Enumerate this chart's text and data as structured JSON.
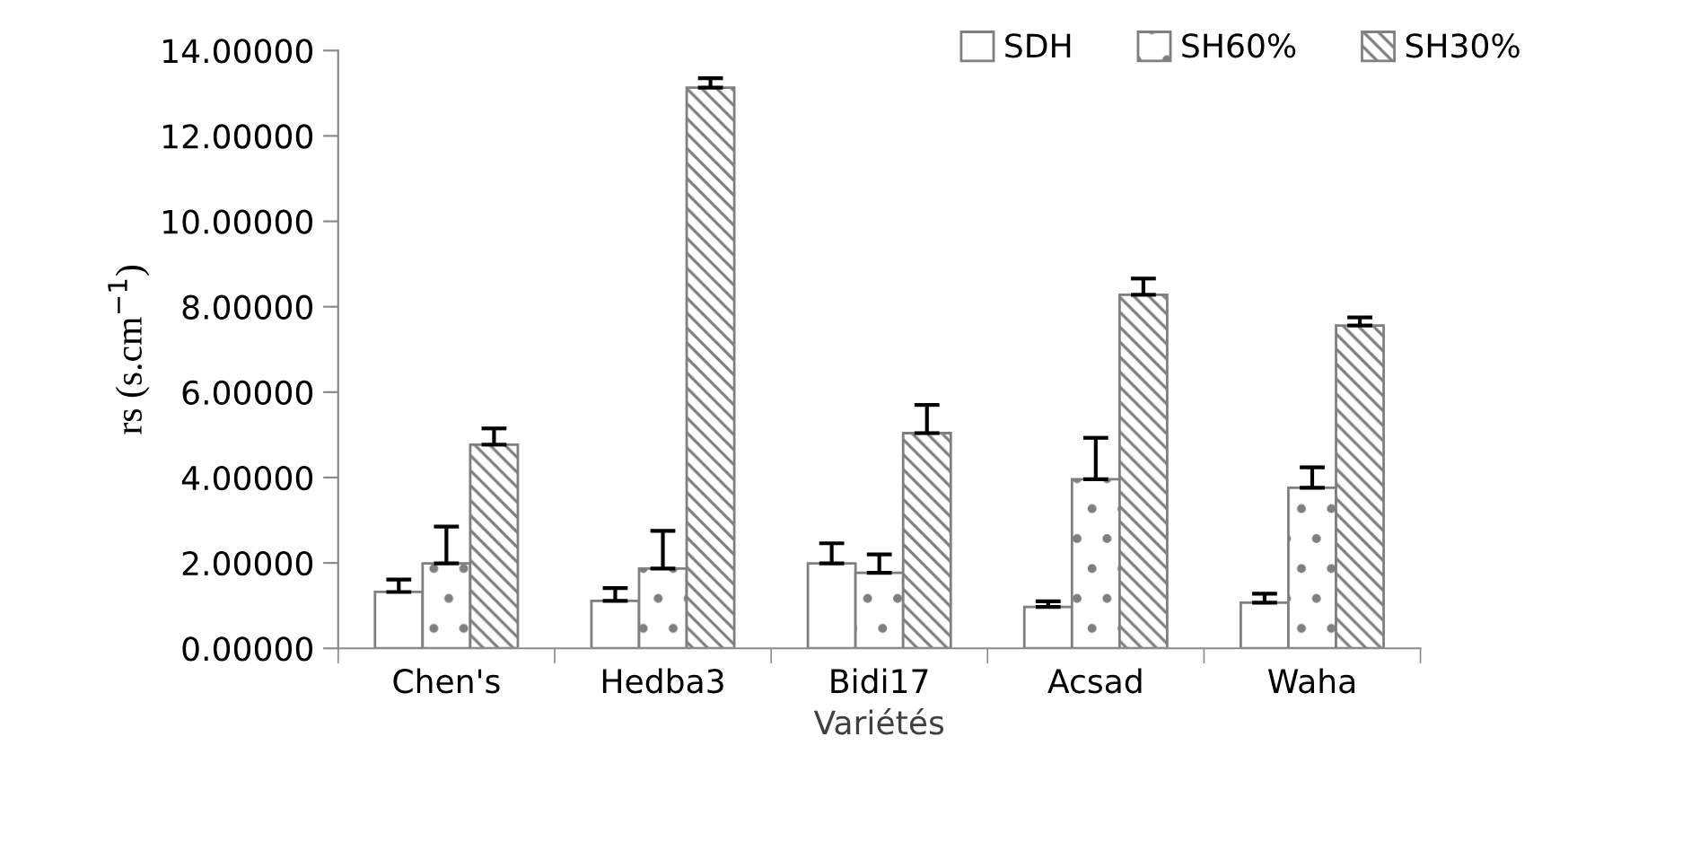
{
  "chart_data": {
    "type": "bar",
    "xlabel": "Variétés",
    "ylabel": "rs (s.cm$^{−1}$)",
    "categories": [
      "Chen's",
      "Hedba3",
      "Bidi17",
      "Acsad",
      "Waha"
    ],
    "series": [
      {
        "name": "SDH",
        "color": "#ffffff",
        "values": [
          1.32,
          1.11,
          1.99,
          0.97,
          1.07
        ],
        "errors": [
          [
            1.32,
            1.61
          ],
          [
            1.11,
            1.41
          ],
          [
            1.99,
            2.46
          ],
          [
            0.97,
            1.1
          ],
          [
            1.07,
            1.28
          ]
        ]
      },
      {
        "name": "SH60%",
        "color": "#7f7f7f",
        "values": [
          1.99,
          1.87,
          1.77,
          3.96,
          3.76
        ],
        "errors": [
          [
            1.99,
            2.85
          ],
          [
            1.87,
            2.75
          ],
          [
            1.77,
            2.2
          ],
          [
            3.96,
            4.93
          ],
          [
            3.76,
            4.24
          ]
        ]
      },
      {
        "name": "SH30%",
        "color": "#7f7f7f",
        "values": [
          4.77,
          13.13,
          5.04,
          8.28,
          7.56
        ],
        "errors": [
          [
            4.77,
            5.15
          ],
          [
            13.13,
            13.35
          ],
          [
            5.04,
            5.7
          ],
          [
            8.28,
            8.66
          ],
          [
            7.56,
            7.75
          ]
        ]
      }
    ],
    "ylim": [
      0,
      14
    ],
    "yticks": [
      {
        "value": 0,
        "label": "0.00000"
      },
      {
        "value": 2,
        "label": "2.00000"
      },
      {
        "value": 4,
        "label": "4.00000"
      },
      {
        "value": 6,
        "label": "6.00000"
      },
      {
        "value": 8,
        "label": "8.00000"
      },
      {
        "value": 10,
        "label": "10.00000"
      },
      {
        "value": 12,
        "label": "12.00000"
      },
      {
        "value": 14,
        "label": "14.00000"
      }
    ],
    "grid": false,
    "legend": "top right"
  }
}
